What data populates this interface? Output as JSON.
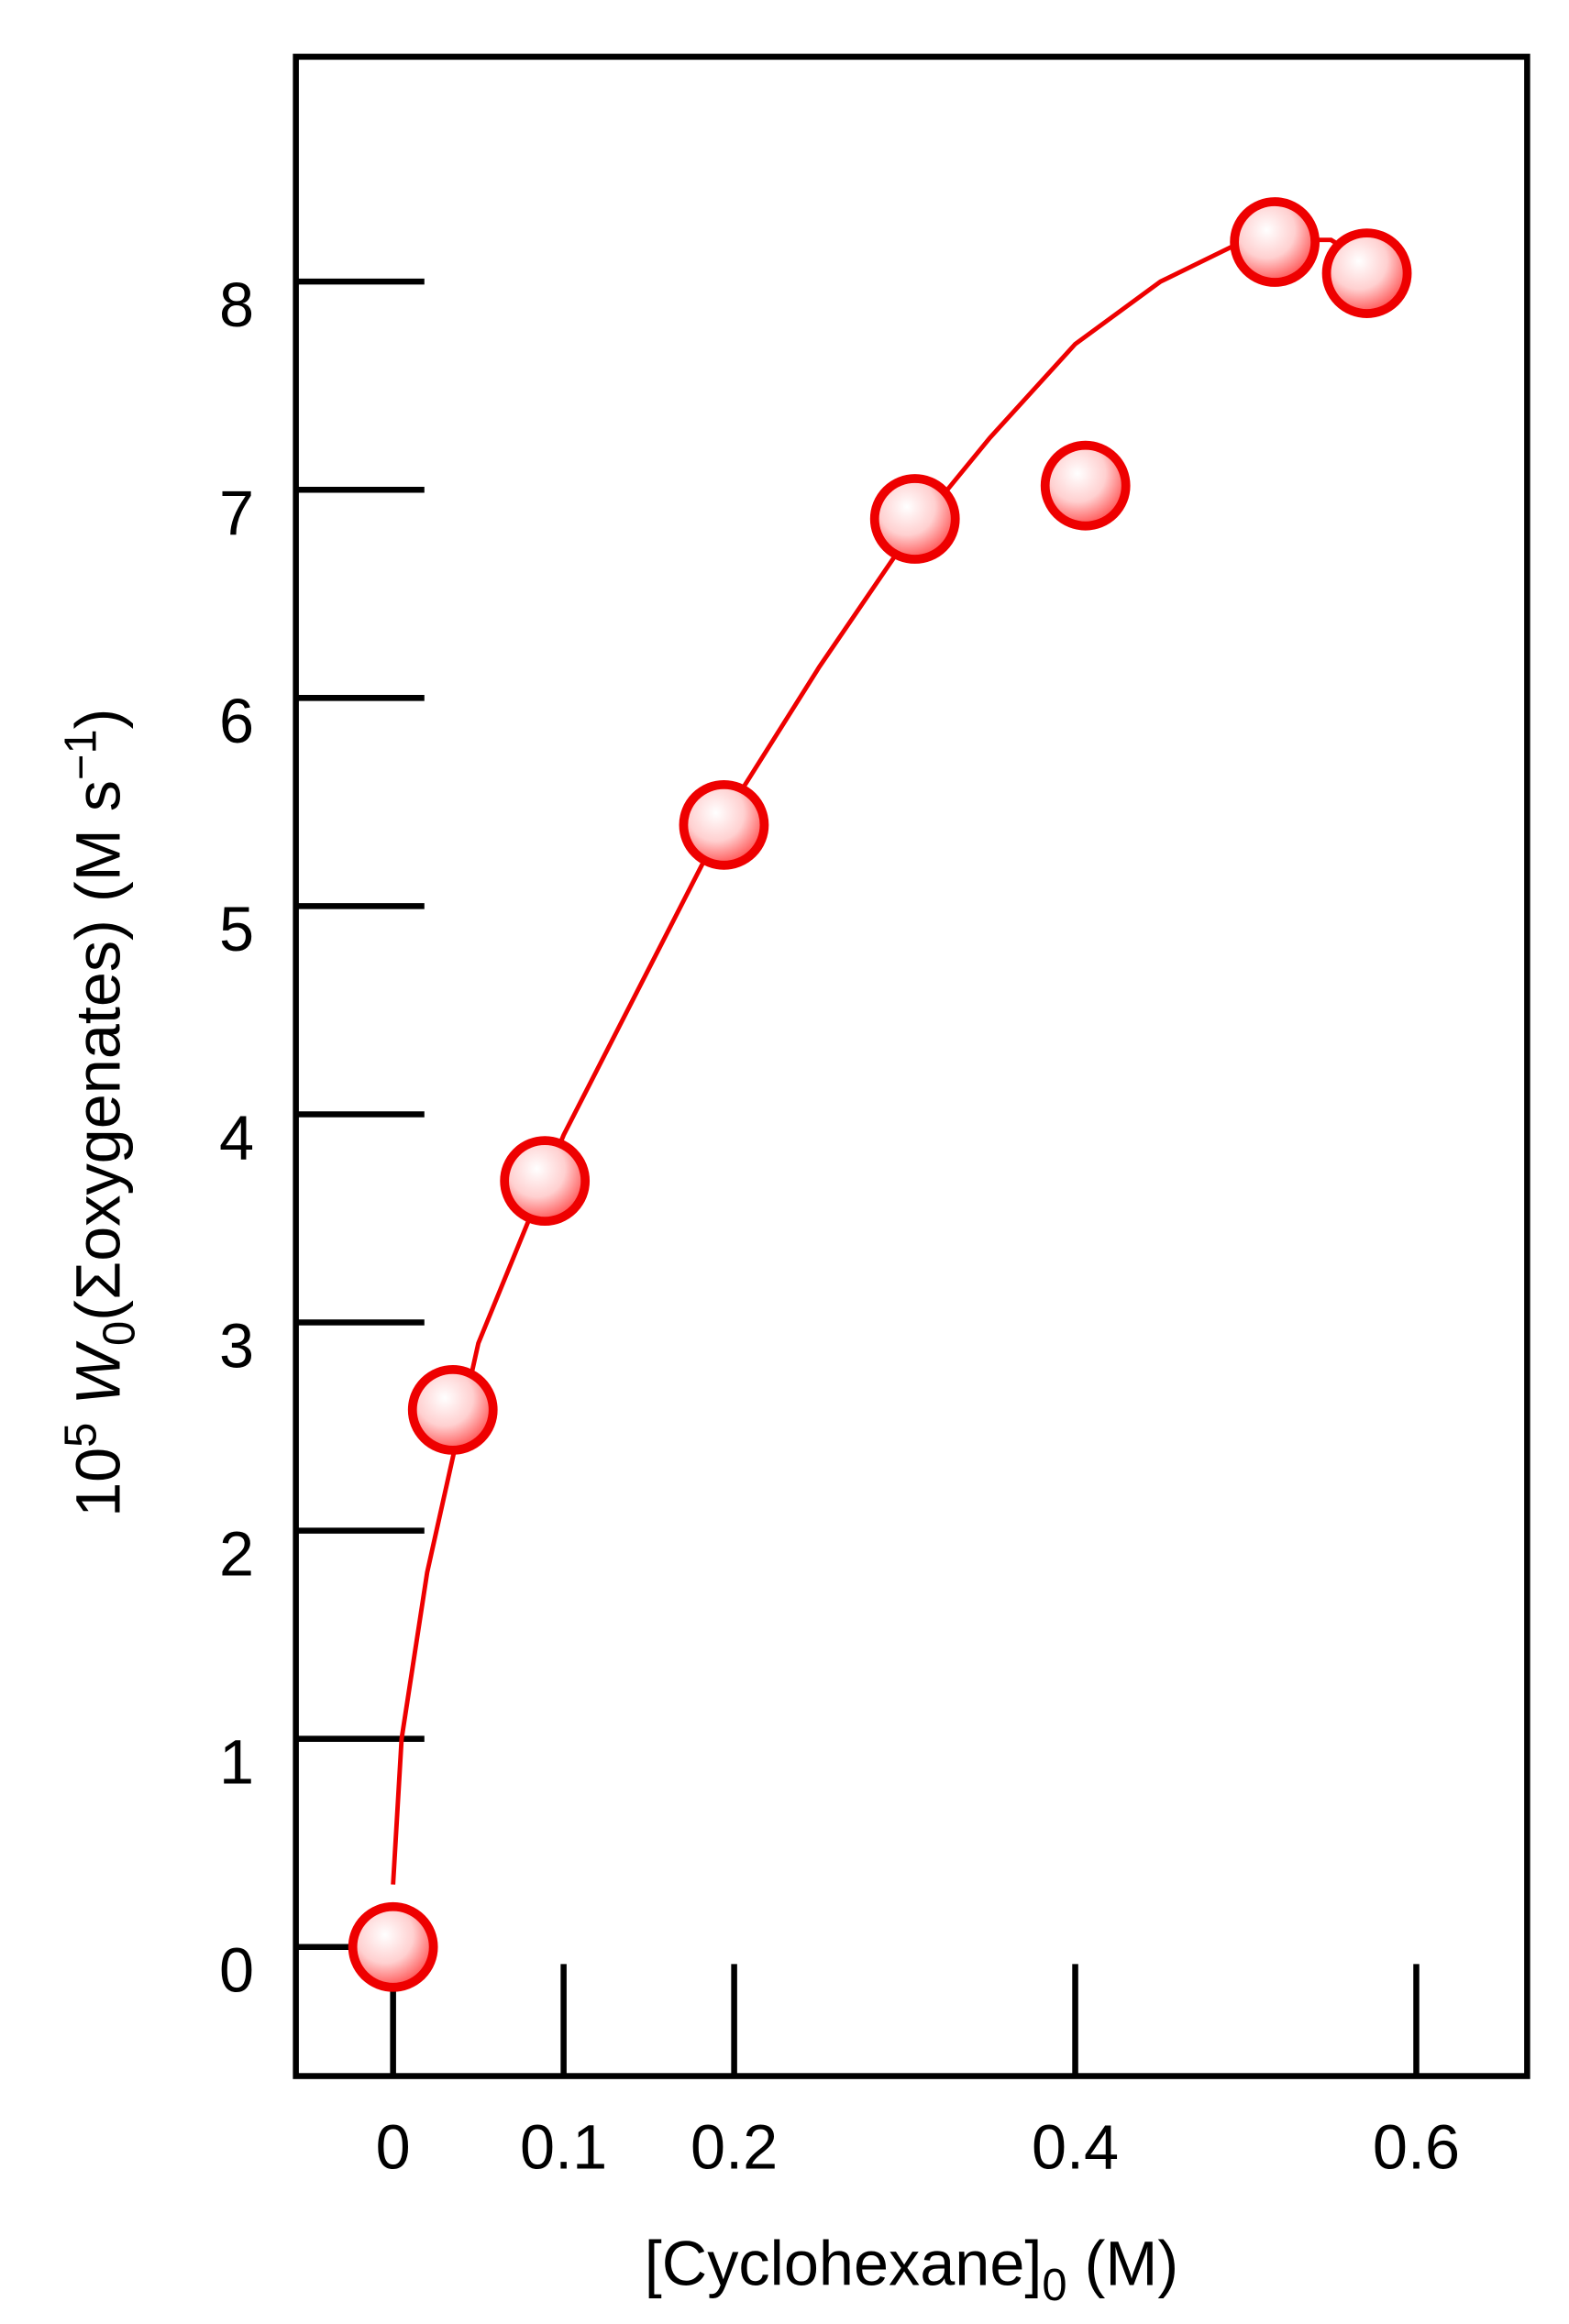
{
  "chart_data": {
    "type": "scatter",
    "x_label": [
      "[Cyclohexane]",
      "0",
      " (M)"
    ],
    "y_label": [
      "10",
      "5",
      " ",
      "W",
      "0",
      "(Σoxygenates) (M s",
      "−1",
      ")"
    ],
    "xlim": [
      -0.057,
      0.665
    ],
    "ylim": [
      -0.62,
      9.08
    ],
    "xticks": [
      0,
      0.1,
      0.2,
      0.4,
      0.6
    ],
    "yticks": [
      0,
      1,
      2,
      3,
      4,
      5,
      6,
      7,
      8
    ],
    "series": [
      {
        "color": "#ee0000",
        "x": [
          0,
          0.035,
          0.089,
          0.194,
          0.306,
          0.406,
          0.517,
          0.571
        ],
        "values": [
          0,
          2.58,
          3.68,
          5.39,
          6.86,
          7.02,
          8.19,
          8.04
        ]
      }
    ],
    "fit": {
      "color": "#ee0000",
      "x": [
        0,
        0.005,
        0.02,
        0.05,
        0.1,
        0.15,
        0.2,
        0.25,
        0.3,
        0.35,
        0.4,
        0.45,
        0.5,
        0.55,
        0.57
      ],
      "values": [
        0.3,
        1.0,
        1.8,
        2.9,
        3.9,
        4.7,
        5.5,
        6.15,
        6.75,
        7.25,
        7.7,
        8.0,
        8.2,
        8.2,
        8.1
      ]
    }
  }
}
